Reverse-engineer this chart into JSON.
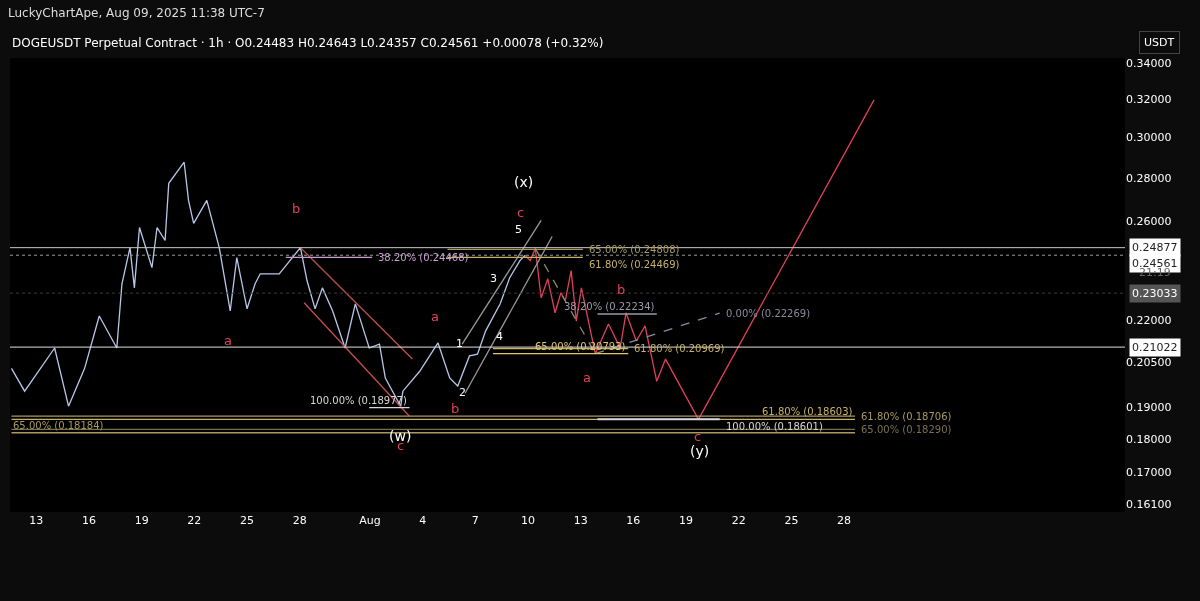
{
  "chart_data": {
    "type": "line",
    "title": "DOGEUSDT Perpetual Contract · 1h · O0.24483 H0.24643 L0.24357 C0.24561 +0.00078 (+0.32%)",
    "subtitle": "LuckyChartApe, Aug 09, 2025 11:38 UTC-7",
    "ylabel": "USDT",
    "log": "y",
    "grid": false,
    "legend": false,
    "marker": "none",
    "xlim": [
      "2025-07-11T12:00",
      "2025-09-13T00:00"
    ],
    "xticks": [
      {
        "value": "2025-07-13",
        "label": "13"
      },
      {
        "value": "2025-07-16",
        "label": "16"
      },
      {
        "value": "2025-07-19",
        "label": "19"
      },
      {
        "value": "2025-07-22",
        "label": "22"
      },
      {
        "value": "2025-07-25",
        "label": "25"
      },
      {
        "value": "2025-07-28",
        "label": "28"
      },
      {
        "value": "2025-08-01",
        "label": "Aug"
      },
      {
        "value": "2025-08-04",
        "label": "4"
      },
      {
        "value": "2025-08-07",
        "label": "7"
      },
      {
        "value": "2025-08-10",
        "label": "10"
      },
      {
        "value": "2025-08-13",
        "label": "13"
      },
      {
        "value": "2025-08-16",
        "label": "16"
      },
      {
        "value": "2025-08-19",
        "label": "19"
      },
      {
        "value": "2025-08-22",
        "label": "22"
      },
      {
        "value": "2025-08-25",
        "label": "25"
      },
      {
        "value": "2025-08-28",
        "label": "28"
      }
    ],
    "ylim": [
      0.159,
      0.343
    ],
    "yticks": [
      {
        "value": 0.34,
        "label": "0.34000"
      },
      {
        "value": 0.32,
        "label": "0.32000"
      },
      {
        "value": 0.3,
        "label": "0.30000"
      },
      {
        "value": 0.28,
        "label": "0.28000"
      },
      {
        "value": 0.26,
        "label": "0.26000"
      },
      {
        "value": 0.22,
        "label": "0.22000"
      },
      {
        "value": 0.205,
        "label": "0.20500"
      },
      {
        "value": 0.19,
        "label": "0.19000"
      },
      {
        "value": 0.18,
        "label": "0.18000"
      },
      {
        "value": 0.17,
        "label": "0.17000"
      },
      {
        "value": 0.161,
        "label": "0.16100"
      }
    ],
    "series": [
      {
        "color": "#b8c6e8",
        "x": [
          "2025-07-11T14:00",
          "2025-07-12T08:00",
          "2025-07-14T01:00",
          "2025-07-14T20:00",
          "2025-07-15T18:00",
          "2025-07-16T14:00",
          "2025-07-17T14:00",
          "2025-07-17T21:00",
          "2025-07-18T08:00",
          "2025-07-18T14:00",
          "2025-07-18T21:00",
          "2025-07-19T14:00",
          "2025-07-19T21:00",
          "2025-07-20T08:00",
          "2025-07-20T13:00",
          "2025-07-21T10:00",
          "2025-07-21T16:00",
          "2025-07-21T23:00",
          "2025-07-22T17:00",
          "2025-07-23T10:00",
          "2025-07-24T01:00",
          "2025-07-24T10:00",
          "2025-07-25T00:00",
          "2025-07-25T11:00",
          "2025-07-25T18:00",
          "2025-07-26T20:00",
          "2025-07-28T01:00",
          "2025-07-28T10:00",
          "2025-07-28T21:00",
          "2025-07-29T07:00",
          "2025-07-29T21:00",
          "2025-07-30T14:00",
          "2025-07-31T04:00",
          "2025-07-31T23:00",
          "2025-08-01T13:00",
          "2025-08-01T21:00",
          "2025-08-02T18:00",
          "2025-08-02T21:00",
          "2025-08-03T20:00",
          "2025-08-04T21:00",
          "2025-08-05T13:00",
          "2025-08-06T00:00",
          "2025-08-06T16:00",
          "2025-08-07T03:00",
          "2025-08-07T14:00",
          "2025-08-08T10:00",
          "2025-08-08T23:00",
          "2025-08-09T13:00",
          "2025-08-09T20:00"
        ],
        "values": [
          0.2028,
          0.1951,
          0.2099,
          0.1902,
          0.2028,
          0.2216,
          0.2099,
          0.234,
          0.2488,
          0.2324,
          0.2574,
          0.2405,
          0.2574,
          0.2518,
          0.2774,
          0.2875,
          0.2695,
          0.2592,
          0.2695,
          0.2488,
          0.2235,
          0.2446,
          0.2243,
          0.234,
          0.238,
          0.238,
          0.2488,
          0.2352,
          0.2243,
          0.2324,
          0.2235,
          0.2099,
          0.2262,
          0.2099,
          0.2113,
          0.1995,
          0.1902,
          0.1951,
          0.2018,
          0.2117,
          0.1995,
          0.1968,
          0.2071,
          0.2077,
          0.216,
          0.2262,
          0.2364,
          0.2434,
          0.2456
        ]
      },
      {
        "color": "#e0405a",
        "x": [
          "2025-08-09T20:00",
          "2025-08-10T03:00",
          "2025-08-10T10:00",
          "2025-08-10T18:00",
          "2025-08-11T03:00",
          "2025-08-11T13:00",
          "2025-08-11T21:00",
          "2025-08-12T03:00",
          "2025-08-12T11:00",
          "2025-08-12T18:00",
          "2025-08-13T01:00",
          "2025-08-13T20:00",
          "2025-08-14T14:00",
          "2025-08-15T06:00",
          "2025-08-15T14:00",
          "2025-08-16T04:00",
          "2025-08-16T16:00",
          "2025-08-17T08:00",
          "2025-08-17T20:00",
          "2025-08-19T17:00",
          "2025-08-29T17:00"
        ],
        "values": [
          0.2456,
          0.2434,
          0.2484,
          0.2285,
          0.236,
          0.2228,
          0.2305,
          0.2274,
          0.2393,
          0.2197,
          0.2324,
          0.2079,
          0.2186,
          0.2099,
          0.2228,
          0.2124,
          0.2179,
          0.1984,
          0.206,
          0.186,
          0.3195
        ]
      },
      {
        "color": "#c0504d",
        "x": [
          "2025-07-28T01:00",
          "2025-08-03T10:00"
        ],
        "values": [
          0.2488,
          0.206
        ]
      },
      {
        "color": "#c0504d",
        "x": [
          "2025-07-28T06:00",
          "2025-08-03T06:00"
        ],
        "values": [
          0.2266,
          0.187
        ]
      },
      {
        "color": "#9a9a9a",
        "x": [
          "2025-08-06T06:00",
          "2025-08-10T18:00"
        ],
        "values": [
          0.2113,
          0.2605
        ]
      },
      {
        "color": "#9a9a9a",
        "x": [
          "2025-08-06T10:00",
          "2025-08-11T09:00"
        ],
        "values": [
          0.1944,
          0.2535
        ]
      },
      {
        "color": "#8a8a6a",
        "line_style": "dashed",
        "x": [
          "2025-08-10T10:00",
          "2025-08-13T20:00"
        ],
        "values": [
          0.2484,
          0.2079
        ]
      },
      {
        "name": "0.00% (0.22269)",
        "color": "#8a8a9a",
        "line_style": "dashed",
        "x": [
          "2025-08-13T20:00",
          "2025-08-20T22:00"
        ],
        "values": [
          0.2079,
          0.22269
        ]
      },
      {
        "name": "38.20% (0.24468)",
        "color": "#c9a0d0",
        "x": [
          "2025-07-27T05:00",
          "2025-08-01T03:00"
        ],
        "values": [
          0.24468,
          0.24468
        ]
      },
      {
        "name": "65.00% (0.24808)",
        "color": "#a89a60",
        "x": [
          "2025-08-05T10:00",
          "2025-08-13T03:00"
        ],
        "values": [
          0.24808,
          0.24808
        ]
      },
      {
        "name": "61.80% (0.24469)",
        "color": "#c8b26a",
        "x": [
          "2025-08-05T10:00",
          "2025-08-13T03:00"
        ],
        "values": [
          0.24469,
          0.24469
        ]
      },
      {
        "name": "100.00% (0.18977)",
        "color": "#d8d8d8",
        "x": [
          "2025-07-31T23:00",
          "2025-08-03T06:00"
        ],
        "values": [
          0.18977,
          0.18977
        ]
      },
      {
        "name": "38.20% (0.22234)",
        "color": "#9a9aa8",
        "x": [
          "2025-08-13T23:00",
          "2025-08-17T08:00"
        ],
        "values": [
          0.22234,
          0.22234
        ]
      },
      {
        "name": "61.80% (0.20969)",
        "color": "#c8b26a",
        "x": [
          "2025-08-08T00:00",
          "2025-08-15T17:00"
        ],
        "values": [
          0.20969,
          0.20969
        ]
      },
      {
        "name": "65.00% (0.20793)",
        "color": "#e0c870",
        "x": [
          "2025-08-08T00:00",
          "2025-08-15T17:00"
        ],
        "values": [
          0.20793,
          0.20793
        ]
      },
      {
        "name": "61.80% (0.18706)",
        "color": "#a89a60",
        "x": [
          "2025-07-11T14:00",
          "2025-08-28T15:00"
        ],
        "values": [
          0.18706,
          0.18706
        ]
      },
      {
        "name": "61.80% (0.18603)",
        "color": "#c8b26a",
        "x": [
          "2025-07-11T14:00",
          "2025-08-28T15:00"
        ],
        "values": [
          0.18603,
          0.18603
        ]
      },
      {
        "name": "65.00% (0.18290)",
        "color": "#7a7050",
        "x": [
          "2025-07-11T14:00",
          "2025-08-28T15:00"
        ],
        "values": [
          0.1829,
          0.1829
        ]
      },
      {
        "name": "65.00% (0.18184)",
        "color": "#a89a60",
        "x": [
          "2025-07-11T14:00",
          "2025-08-28T15:00"
        ],
        "values": [
          0.18184,
          0.18184
        ]
      },
      {
        "name": "100.00% (0.18601)",
        "color": "#d8d8d8",
        "x": [
          "2025-08-13T23:00",
          "2025-08-20T22:00"
        ],
        "values": [
          0.18601,
          0.18601
        ]
      }
    ],
    "ref_lines": [
      {
        "axis": "y",
        "value": 0.24877,
        "label": "0.24877",
        "color": "#c8c8c8",
        "line_style": "solid"
      },
      {
        "axis": "y",
        "value": 0.24561,
        "label": "0.24561",
        "color": "#9a9a9a",
        "line_style": "dotted"
      },
      {
        "axis": "y",
        "value": 0.23033,
        "label": "0.23033",
        "color": "#3a3a3a",
        "line_style": "dotted"
      },
      {
        "axis": "y",
        "value": 0.21022,
        "label": "0.21022",
        "color": "#e0e0e0",
        "line_style": "solid"
      }
    ],
    "annotations": [
      "21:19",
      "b",
      "a",
      "a",
      "b",
      "(w)",
      "c",
      "(x)",
      "c",
      "5",
      "3",
      "1",
      "2",
      "4",
      "b",
      "a",
      "c",
      "(y)"
    ]
  }
}
